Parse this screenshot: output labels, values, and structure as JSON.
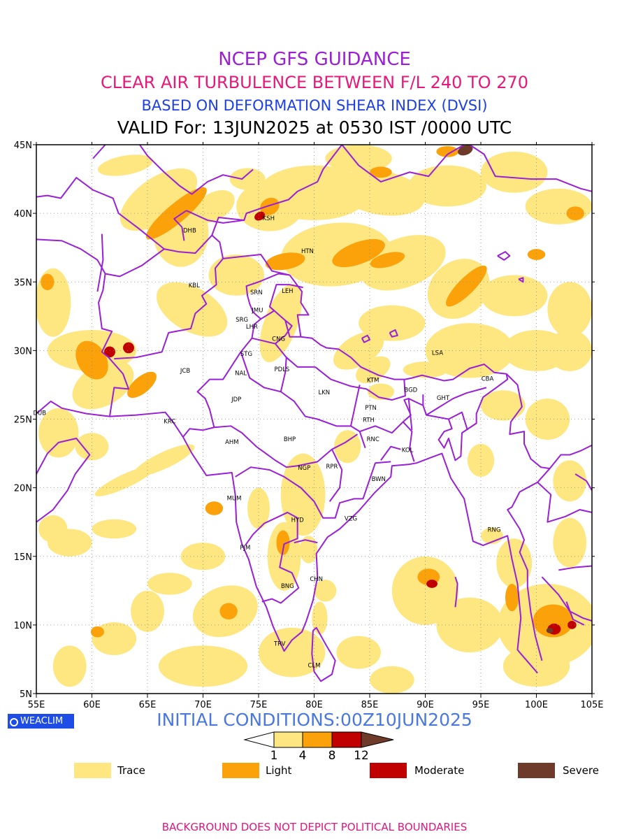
{
  "titles": {
    "line1": "NCEP GFS GUIDANCE",
    "line2": "CLEAR AIR TURBULENCE BETWEEN F/L 240 TO 270",
    "line3": "BASED ON DEFORMATION SHEAR INDEX (DVSI)",
    "line4": "VALID For: 13JUN2025 at 0530 IST /0000 UTC"
  },
  "title_colors": {
    "line1": "#9a1fd6",
    "line2": "#e8187a",
    "line3": "#1d3fe6",
    "line4": "#000000"
  },
  "axes": {
    "lon_ticks": [
      "55E",
      "60E",
      "65E",
      "70E",
      "75E",
      "80E",
      "85E",
      "90E",
      "95E",
      "100E",
      "105E"
    ],
    "lat_ticks": [
      "45N",
      "40N",
      "35N",
      "30N",
      "25N",
      "20N",
      "15N",
      "10N",
      "5N"
    ],
    "lon_range": [
      55,
      105
    ],
    "lat_range": [
      5,
      45
    ]
  },
  "cities": [
    {
      "code": "KSH",
      "lon": 75.9,
      "lat": 39.5
    },
    {
      "code": "DHB",
      "lon": 68.8,
      "lat": 38.6
    },
    {
      "code": "HTN",
      "lon": 79.4,
      "lat": 37.1
    },
    {
      "code": "KBL",
      "lon": 69.2,
      "lat": 34.6
    },
    {
      "code": "SRN",
      "lon": 74.8,
      "lat": 34.1
    },
    {
      "code": "LEH",
      "lon": 77.6,
      "lat": 34.2
    },
    {
      "code": "JMU",
      "lon": 74.9,
      "lat": 32.8
    },
    {
      "code": "SRG",
      "lon": 73.5,
      "lat": 32.1
    },
    {
      "code": "LHR",
      "lon": 74.4,
      "lat": 31.6
    },
    {
      "code": "CNG",
      "lon": 76.8,
      "lat": 30.7
    },
    {
      "code": "STG",
      "lon": 73.9,
      "lat": 29.6
    },
    {
      "code": "LSA",
      "lon": 91.1,
      "lat": 29.7
    },
    {
      "code": "JCB",
      "lon": 68.4,
      "lat": 28.4
    },
    {
      "code": "NAL",
      "lon": 73.4,
      "lat": 28.2
    },
    {
      "code": "PDLS",
      "lon": 77.1,
      "lat": 28.5
    },
    {
      "code": "KTM",
      "lon": 85.3,
      "lat": 27.7
    },
    {
      "code": "BGD",
      "lon": 88.7,
      "lat": 27.0
    },
    {
      "code": "CBA",
      "lon": 95.6,
      "lat": 27.8
    },
    {
      "code": "JDP",
      "lon": 73.0,
      "lat": 26.3
    },
    {
      "code": "LKN",
      "lon": 80.9,
      "lat": 26.8
    },
    {
      "code": "GHT",
      "lon": 91.6,
      "lat": 26.4
    },
    {
      "code": "PTN",
      "lon": 85.1,
      "lat": 25.7
    },
    {
      "code": "DUB",
      "lon": 55.3,
      "lat": 25.3
    },
    {
      "code": "KRC",
      "lon": 67.0,
      "lat": 24.7
    },
    {
      "code": "RTH",
      "lon": 84.9,
      "lat": 24.8
    },
    {
      "code": "BHP",
      "lon": 77.8,
      "lat": 23.4
    },
    {
      "code": "AHM",
      "lon": 72.6,
      "lat": 23.2
    },
    {
      "code": "RNC",
      "lon": 85.3,
      "lat": 23.4
    },
    {
      "code": "KOL",
      "lon": 88.4,
      "lat": 22.6
    },
    {
      "code": "NGP",
      "lon": 79.1,
      "lat": 21.3
    },
    {
      "code": "RPR",
      "lon": 81.6,
      "lat": 21.4
    },
    {
      "code": "BWN",
      "lon": 85.8,
      "lat": 20.5
    },
    {
      "code": "MUM",
      "lon": 72.8,
      "lat": 19.1
    },
    {
      "code": "HYD",
      "lon": 78.5,
      "lat": 17.5
    },
    {
      "code": "VZG",
      "lon": 83.3,
      "lat": 17.6
    },
    {
      "code": "RNG",
      "lon": 96.2,
      "lat": 16.8
    },
    {
      "code": "PJM",
      "lon": 73.8,
      "lat": 15.5
    },
    {
      "code": "CHN",
      "lon": 80.2,
      "lat": 13.2
    },
    {
      "code": "BNG",
      "lon": 77.6,
      "lat": 12.7
    },
    {
      "code": "TRV",
      "lon": 76.9,
      "lat": 8.5
    },
    {
      "code": "CLM",
      "lon": 80.0,
      "lat": 6.9
    }
  ],
  "scale": {
    "thresholds": [
      "1",
      "4",
      "8",
      "12"
    ],
    "colors": {
      "trace": "#fee680",
      "light": "#fba20b",
      "moderate": "#c00000",
      "severe": "#6e3b2a"
    }
  },
  "legend": [
    {
      "label": "Trace",
      "color": "#fee680"
    },
    {
      "label": "Light",
      "color": "#fba20b"
    },
    {
      "label": "Moderate",
      "color": "#c00000"
    },
    {
      "label": "Severe",
      "color": "#6e3b2a"
    }
  ],
  "boundary_color": "#9a1fd6",
  "badge": "WEACLIM",
  "initial_conditions": "INITIAL CONDITIONS:00Z10JUN2025",
  "footer": "BACKGROUND DOES NOT DEPICT POLITICAL BOUNDARIES"
}
